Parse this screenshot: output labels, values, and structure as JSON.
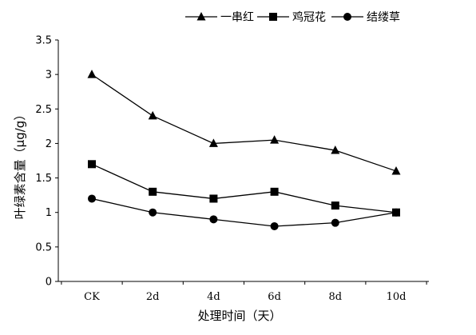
{
  "chart_data": {
    "type": "line",
    "title": "",
    "xlabel": "处理时间（天）",
    "ylabel": "叶绿素含量（μg/g）",
    "categories": [
      "CK",
      "2d",
      "4d",
      "6d",
      "8d",
      "10d"
    ],
    "yticks": [
      "0",
      "0.5",
      "1",
      "1.5",
      "2",
      "2.5",
      "3",
      "3.5"
    ],
    "ylim": [
      0,
      3.5
    ],
    "grid": false,
    "legend_position": "top",
    "series": [
      {
        "name": "一串红",
        "marker": "triangle",
        "values": [
          3.0,
          2.4,
          2.0,
          2.05,
          1.9,
          1.6
        ]
      },
      {
        "name": "鸡冠花",
        "marker": "square",
        "values": [
          1.7,
          1.3,
          1.2,
          1.3,
          1.1,
          1.0
        ]
      },
      {
        "name": "结缕草",
        "marker": "circle",
        "values": [
          1.2,
          1.0,
          0.9,
          0.8,
          0.85,
          1.0
        ]
      }
    ],
    "colors": {
      "line": "#000000"
    }
  }
}
